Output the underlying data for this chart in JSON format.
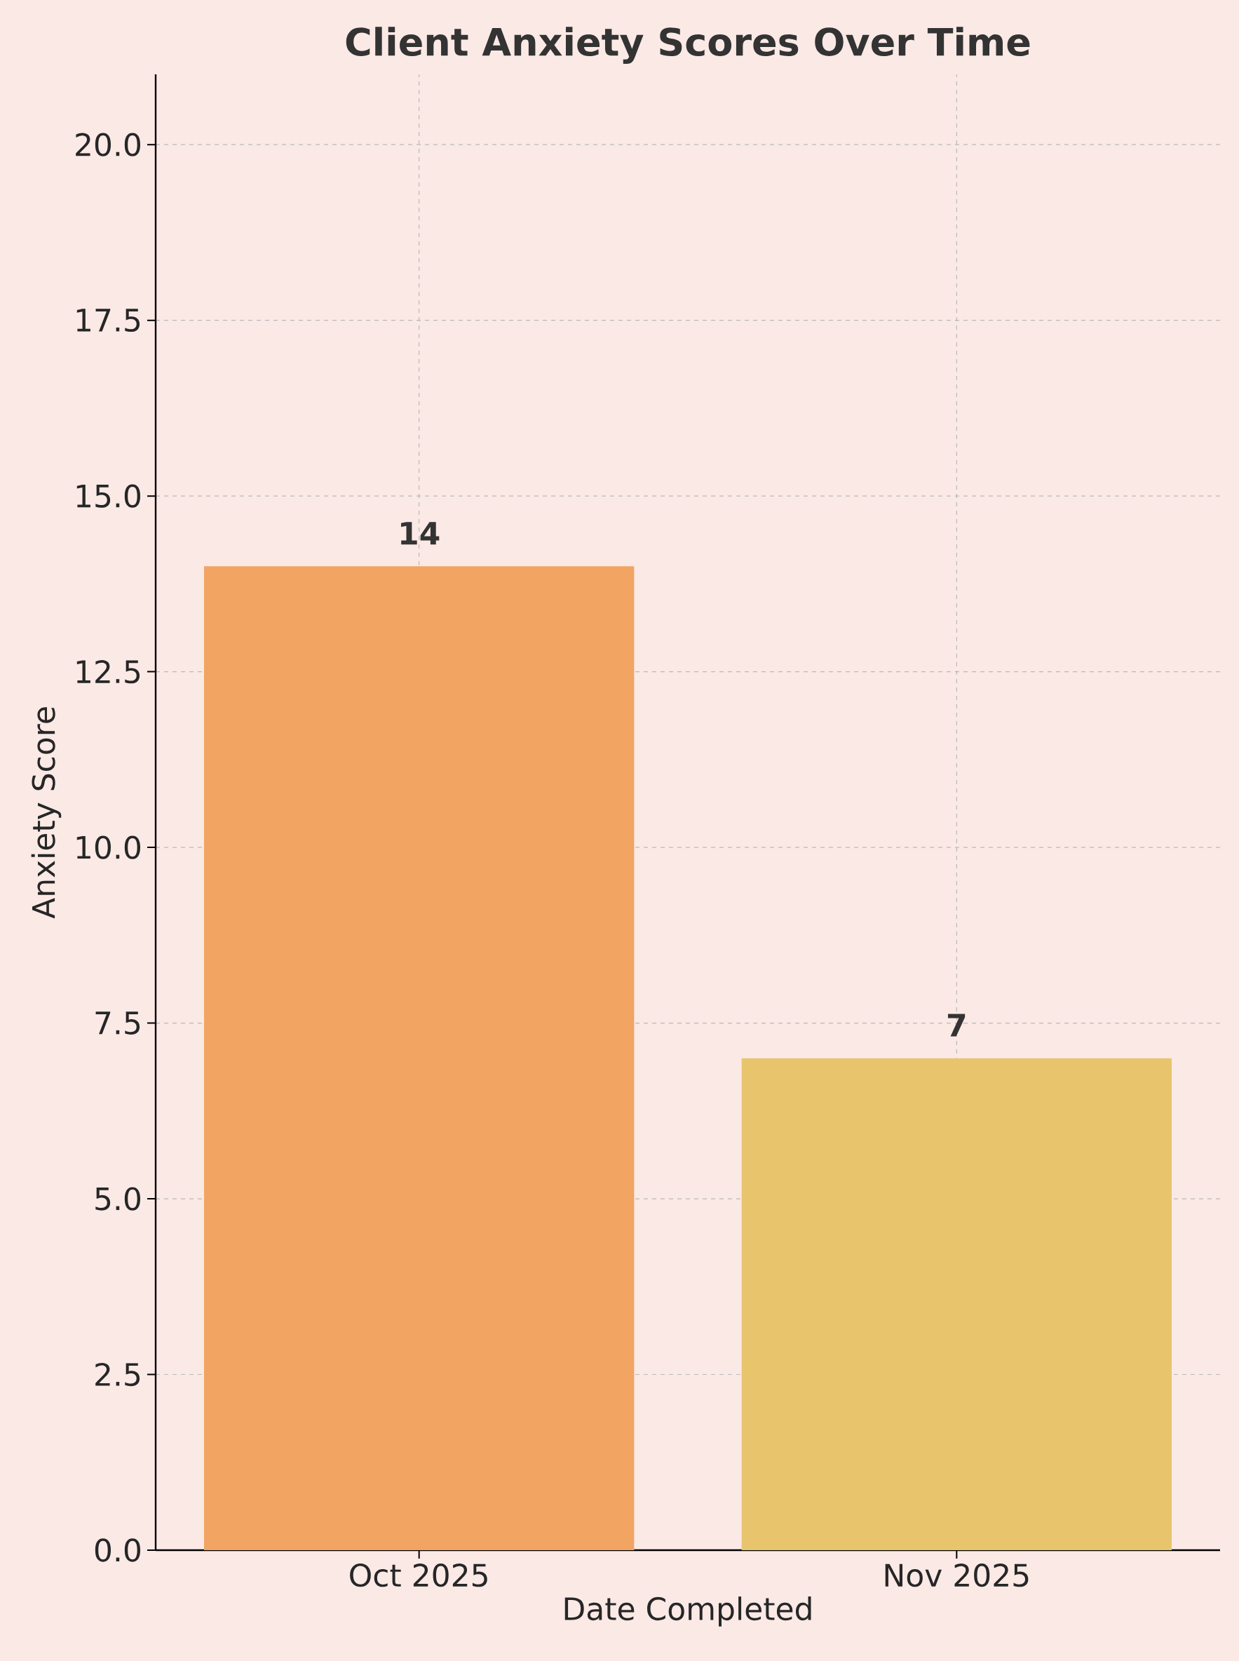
{
  "chart_data": {
    "type": "bar",
    "title": "Client Anxiety Scores Over Time",
    "xlabel": "Date Completed",
    "ylabel": "Anxiety Score",
    "categories": [
      "Oct 2025",
      "Nov 2025"
    ],
    "values": [
      14,
      7
    ],
    "colors": [
      "#f2a463",
      "#e8c56d"
    ],
    "data_labels": true,
    "ylim": [
      0,
      21
    ],
    "yticks": [
      {
        "value": 0,
        "label": "0.0"
      },
      2.5,
      {
        "value": 5,
        "label": "5.0"
      },
      7.5,
      {
        "value": 10,
        "label": "10.0"
      },
      12.5,
      {
        "value": 15,
        "label": "15.0"
      },
      17.5,
      {
        "value": 20,
        "label": "20.0"
      }
    ],
    "grid": true
  }
}
